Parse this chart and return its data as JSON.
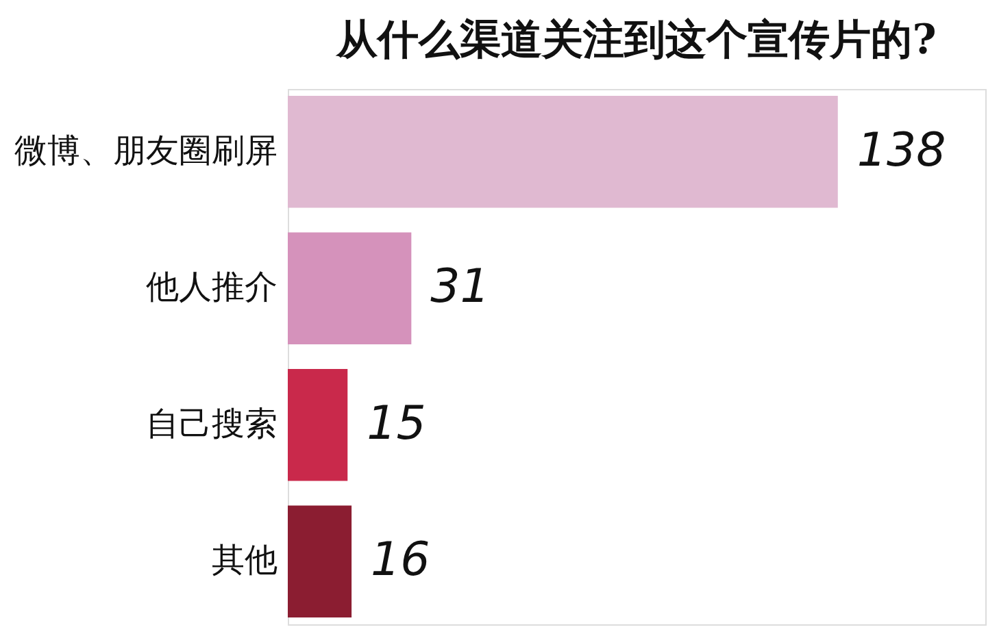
{
  "chart_data": {
    "type": "bar",
    "orientation": "horizontal",
    "title": "从什么渠道关注到这个宣传片的?",
    "categories": [
      "微博、朋友圈刷屏",
      "他人推介",
      "自己搜索",
      "其他"
    ],
    "values": [
      138,
      31,
      15,
      16
    ],
    "colors": [
      "#e0b9d1",
      "#d592bb",
      "#c9294b",
      "#8b1d31"
    ],
    "xlim": [
      0,
      175
    ],
    "tick_labels": "y",
    "data_labels": true,
    "legend": false
  }
}
